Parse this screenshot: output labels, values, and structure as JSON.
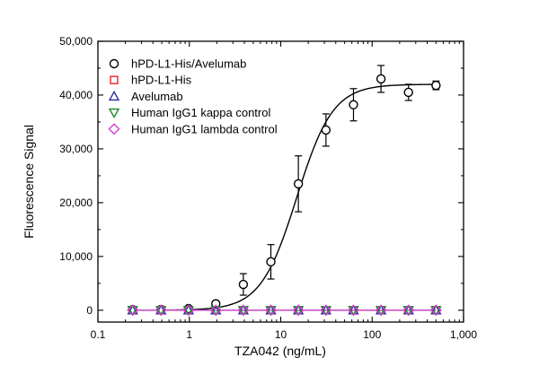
{
  "chart_data": {
    "type": "scatter",
    "xlabel": "TZA042 (ng/mL)",
    "ylabel": "Fluorescence Signal",
    "xscale": "log",
    "xlim": [
      0.1,
      1000
    ],
    "ylim": [
      -2200,
      50000
    ],
    "xticks": [
      0.1,
      1,
      10,
      100,
      1000
    ],
    "xtick_labels": [
      "0.1",
      "1",
      "10",
      "100",
      "1,000"
    ],
    "yticks": [
      0,
      10000,
      20000,
      30000,
      40000,
      50000
    ],
    "ytick_labels": [
      "0",
      "10,000",
      "20,000",
      "30,000",
      "40,000",
      "50,000"
    ],
    "legend_position": "top-left",
    "grid": false,
    "x": [
      0.24,
      0.49,
      0.98,
      1.95,
      3.9,
      7.8,
      15.6,
      31.25,
      62.5,
      125,
      250,
      500
    ],
    "series": [
      {
        "name": "hPD-L1-His/Avelumab",
        "marker": "circle",
        "color": "#000000",
        "values": [
          100,
          150,
          300,
          1200,
          4800,
          9000,
          23500,
          33500,
          38200,
          43000,
          40500,
          41800
        ],
        "errors": [
          100,
          100,
          200,
          500,
          2000,
          3200,
          5200,
          3000,
          3000,
          2500,
          1500,
          800
        ],
        "fit_curve": true,
        "fit": {
          "bottom": 0,
          "top": 42000,
          "ec50": 15,
          "hill": 2.2
        }
      },
      {
        "name": "hPD-L1-His",
        "marker": "square",
        "color": "#e8232a",
        "values": [
          0,
          0,
          0,
          0,
          0,
          0,
          0,
          0,
          0,
          0,
          0,
          0
        ]
      },
      {
        "name": "Avelumab",
        "marker": "triangle-up",
        "color": "#2b2fa8",
        "values": [
          0,
          0,
          0,
          0,
          0,
          0,
          0,
          0,
          0,
          0,
          0,
          0
        ]
      },
      {
        "name": "Human IgG1 kappa control",
        "marker": "triangle-down",
        "color": "#1a8a2a",
        "values": [
          0,
          0,
          0,
          0,
          0,
          0,
          0,
          0,
          0,
          0,
          0,
          0
        ]
      },
      {
        "name": "Human IgG1 lambda control",
        "marker": "diamond",
        "color": "#d63fd3",
        "values": [
          0,
          0,
          0,
          0,
          0,
          0,
          0,
          0,
          0,
          0,
          0,
          0
        ]
      }
    ]
  }
}
